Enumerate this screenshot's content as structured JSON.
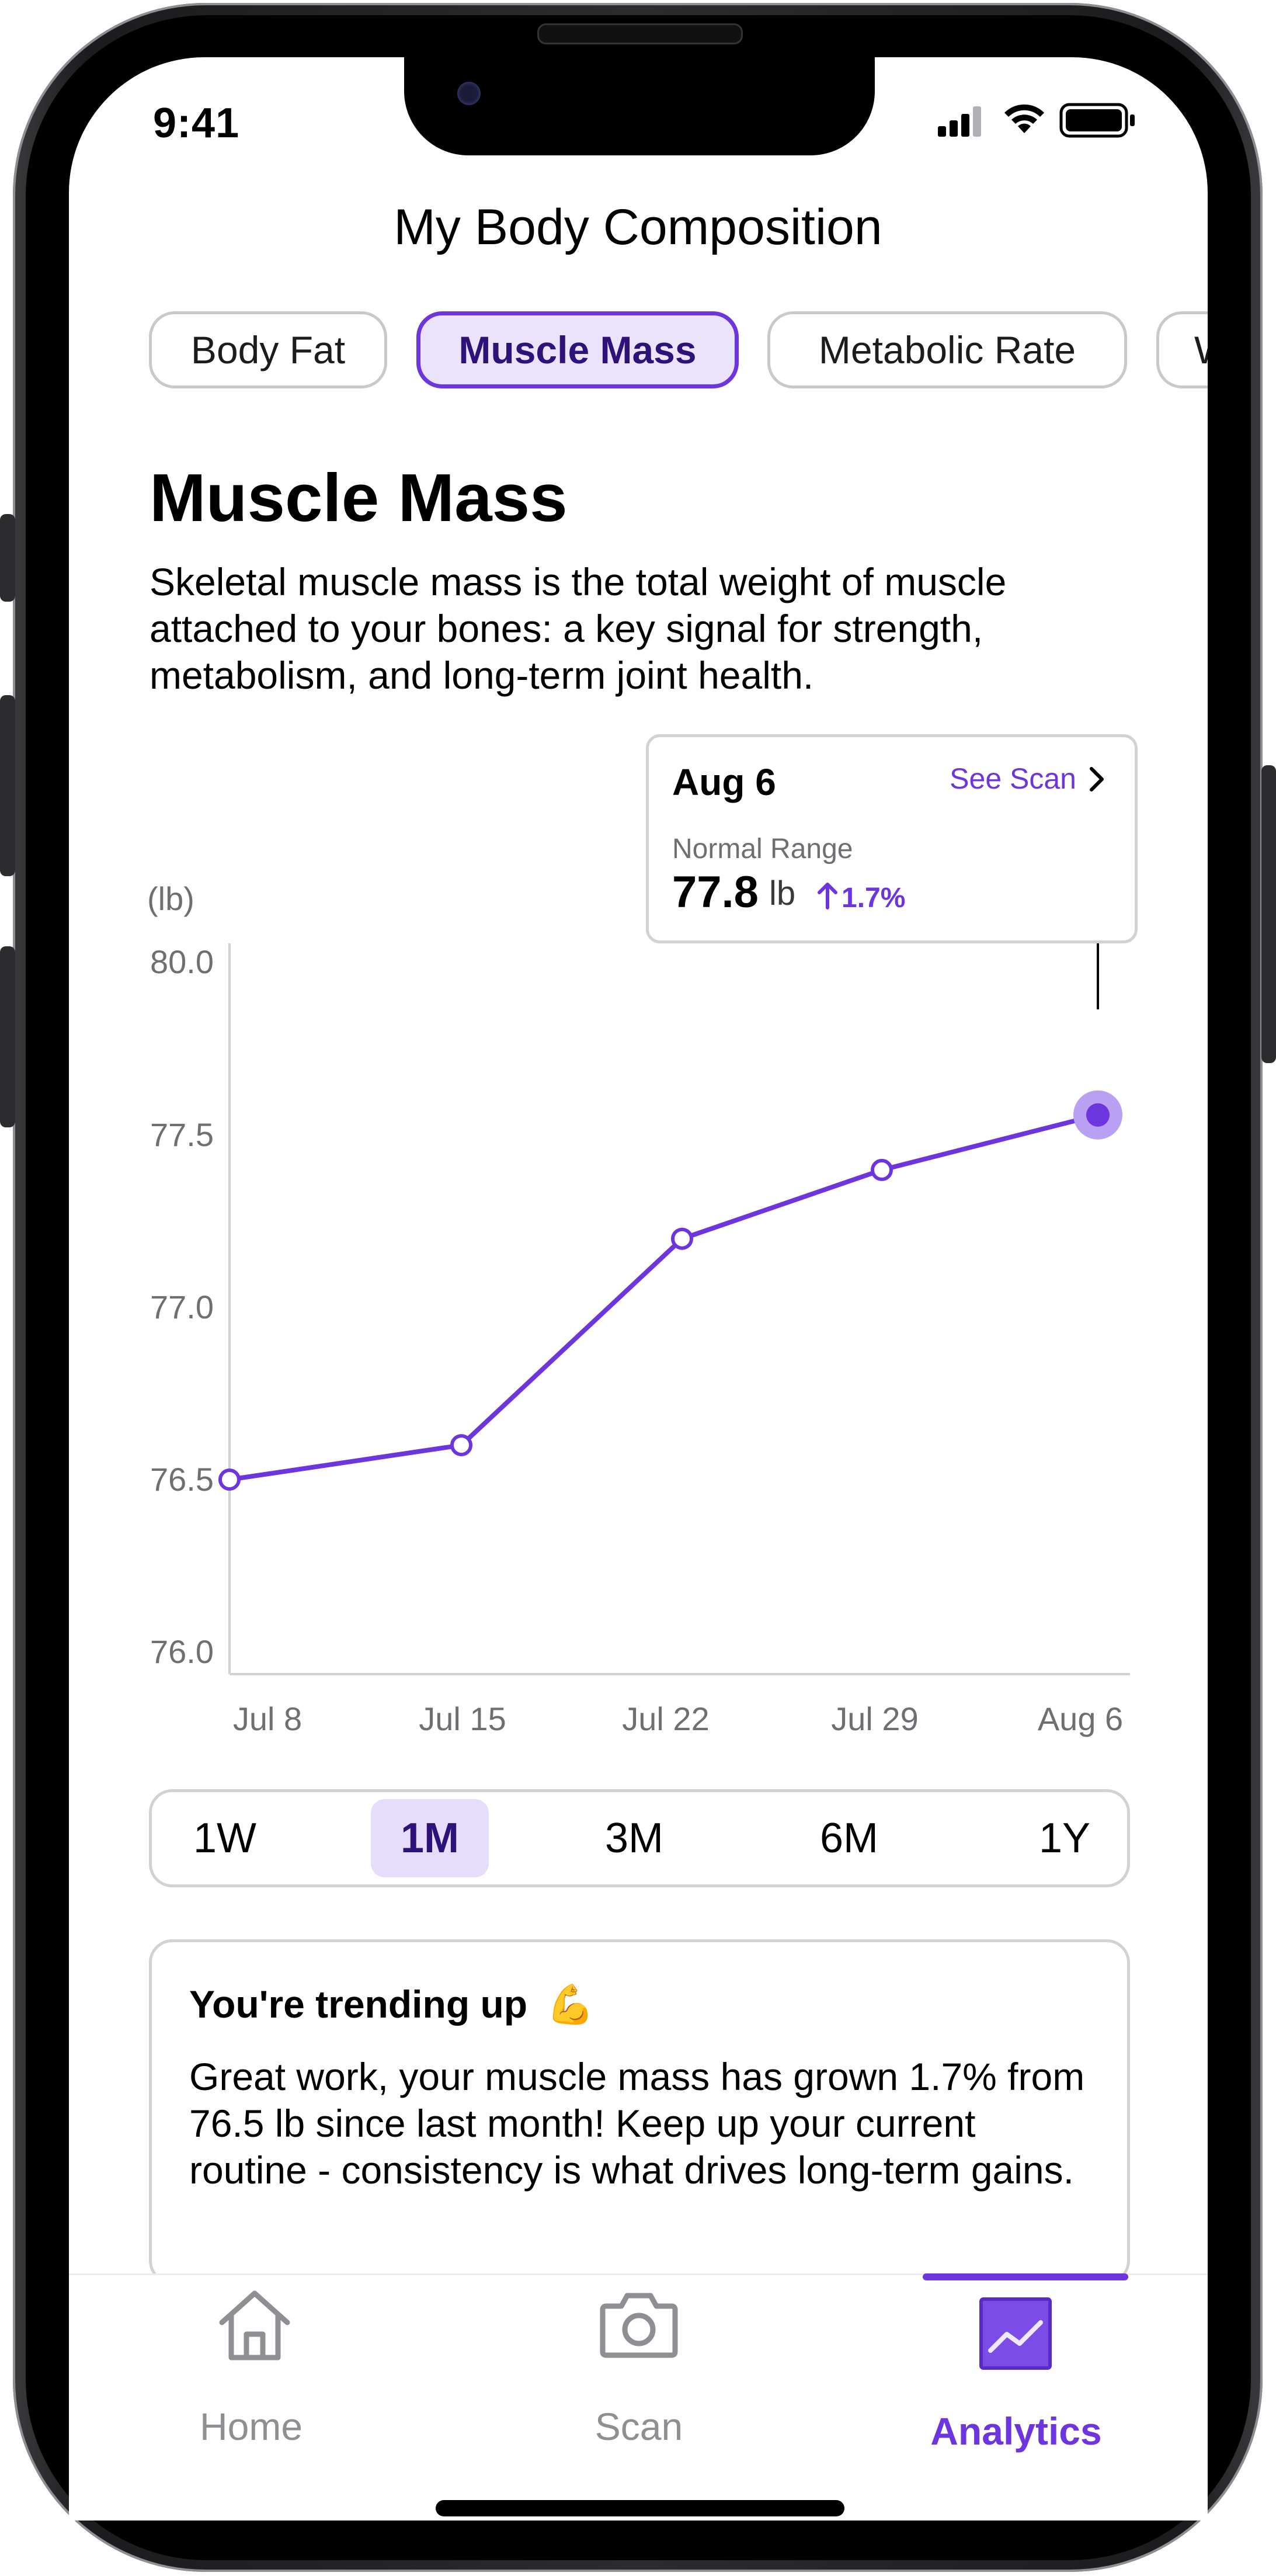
{
  "status_bar": {
    "time": "9:41"
  },
  "header": {
    "title": "My Body Composition"
  },
  "metric_tabs": [
    {
      "label": "Body Fat",
      "active": false
    },
    {
      "label": "Muscle Mass",
      "active": true
    },
    {
      "label": "Metabolic Rate",
      "active": false
    },
    {
      "label": "W",
      "active": false
    }
  ],
  "section": {
    "title": "Muscle Mass",
    "description": "Skeletal muscle mass is the total weight of muscle attached to your bones: a key signal for strength, metabolism, and long-term joint health."
  },
  "tooltip": {
    "date": "Aug 6",
    "link": "See Scan",
    "label": "Normal Range",
    "value": "77.8",
    "unit": "lb",
    "change": "1.7%"
  },
  "chart_data": {
    "type": "line",
    "unit_label": "(lb)",
    "x": [
      "Jul 8",
      "Jul 15",
      "Jul 22",
      "Jul 29",
      "Aug 6"
    ],
    "y_ticks": [
      "80.0",
      "77.5",
      "77.0",
      "76.5",
      "76.0"
    ],
    "series": [
      {
        "points": [
          {
            "x": "Jul 8",
            "y": 76.5
          },
          {
            "x": "Jul 15",
            "y": 76.6
          },
          {
            "x": "Jul 22",
            "y": 77.2
          },
          {
            "x": "Jul 29",
            "y": 77.4
          },
          {
            "x": "Aug 6",
            "y": 77.8
          }
        ],
        "color": "#6c35de"
      }
    ],
    "highlighted_point": "Aug 6"
  },
  "time_range": {
    "options": [
      "1W",
      "1M",
      "3M",
      "6M",
      "1Y"
    ],
    "selected": "1M"
  },
  "insight": {
    "title": "You're trending up",
    "emoji": "💪",
    "body": "Great work, your muscle mass has grown 1.7% from 76.5 lb since last month! Keep up your current routine - consistency is what drives long-term gains."
  },
  "tab_bar": {
    "items": [
      {
        "label": "Home",
        "icon": "home-icon",
        "active": false
      },
      {
        "label": "Scan",
        "icon": "camera-icon",
        "active": false
      },
      {
        "label": "Analytics",
        "icon": "analytics-icon",
        "active": true
      }
    ]
  },
  "colors": {
    "accent": "#6c35de",
    "accent_light": "#ebe3fb",
    "muted": "#8e8e93"
  }
}
